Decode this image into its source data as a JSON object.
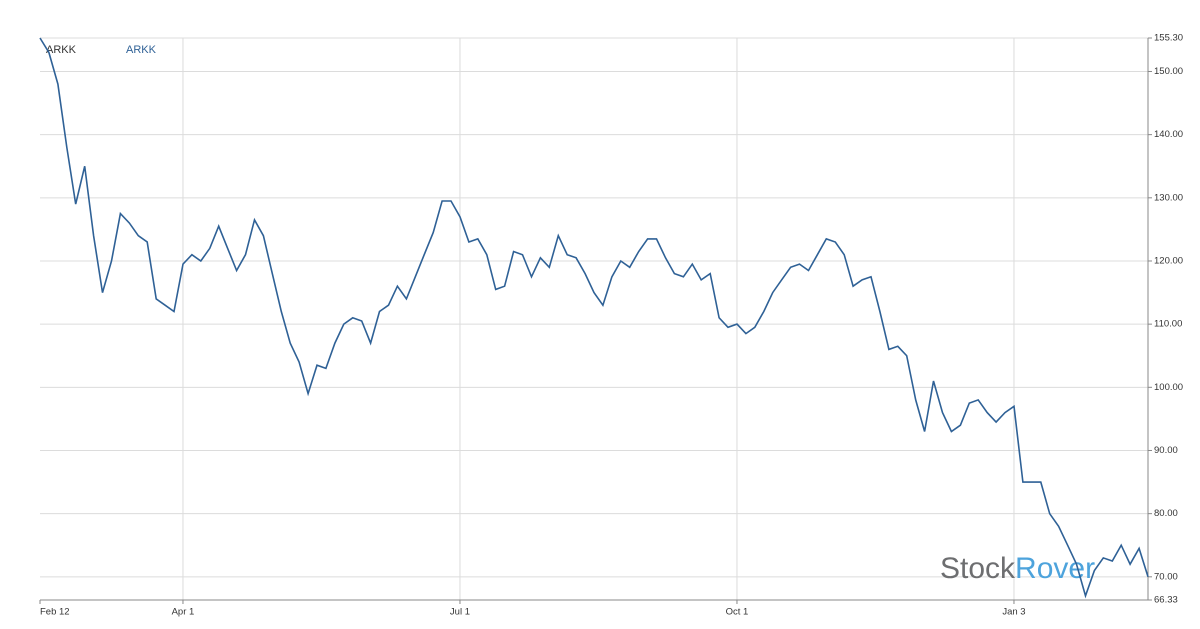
{
  "chart_data": {
    "type": "line",
    "title": "ARKK",
    "categories": [
      "Feb 12",
      null,
      null,
      null,
      null,
      null,
      null,
      null,
      null,
      null,
      null,
      null,
      null,
      null,
      null,
      null,
      "Apr 1",
      null,
      null,
      null,
      null,
      null,
      null,
      null,
      null,
      null,
      null,
      null,
      null,
      null,
      null,
      null,
      null,
      null,
      null,
      null,
      null,
      null,
      null,
      null,
      null,
      null,
      null,
      null,
      null,
      null,
      null,
      "Jul 1",
      null,
      null,
      null,
      null,
      null,
      null,
      null,
      null,
      null,
      null,
      null,
      null,
      null,
      null,
      null,
      null,
      null,
      null,
      null,
      null,
      null,
      null,
      null,
      null,
      null,
      null,
      null,
      null,
      null,
      null,
      "Oct 1",
      null,
      null,
      null,
      null,
      null,
      null,
      null,
      null,
      null,
      null,
      null,
      null,
      null,
      null,
      null,
      null,
      null,
      null,
      null,
      null,
      null,
      null,
      null,
      null,
      null,
      null,
      null,
      null,
      null,
      null,
      "Jan 3",
      null,
      null,
      null,
      null,
      null,
      null,
      null,
      null,
      null,
      null,
      null,
      null,
      null,
      null,
      null
    ],
    "series": [
      {
        "name": "ARKK",
        "color": "#2f6196",
        "values": [
          155.3,
          153,
          148,
          138,
          129,
          135,
          124,
          115,
          120,
          127.5,
          126,
          124,
          123,
          114,
          113,
          112,
          119.5,
          121,
          120,
          122,
          125.5,
          122,
          118.5,
          121,
          126.5,
          124,
          118,
          112,
          107,
          104,
          99,
          103.5,
          103,
          107,
          110,
          111,
          110.5,
          107,
          112,
          113,
          116,
          114,
          117.5,
          121,
          124.5,
          129.5,
          129.5,
          127,
          123,
          123.5,
          121,
          115.5,
          116,
          121.5,
          121,
          117.5,
          120.5,
          119,
          124,
          121,
          120.5,
          118,
          115,
          113,
          117.5,
          120,
          119,
          121.5,
          123.5,
          123.5,
          120.5,
          118,
          117.5,
          119.5,
          117,
          118,
          111,
          109.5,
          110,
          108.5,
          109.5,
          112,
          115,
          117,
          119,
          119.5,
          118.5,
          121,
          123.5,
          123,
          121,
          116,
          117,
          117.5,
          112,
          106,
          106.5,
          105,
          98,
          93,
          101,
          96,
          93,
          94,
          97.5,
          98,
          96,
          94.5,
          96,
          97,
          85,
          85,
          85,
          80,
          78,
          75,
          72,
          67,
          71,
          73,
          72.5,
          75,
          72,
          74.5,
          70
        ]
      }
    ],
    "ylim": [
      66.33,
      155.3
    ],
    "yticks": [
      {
        "value": 66.33,
        "label": "66.33"
      },
      {
        "value": 70,
        "label": "70.00"
      },
      {
        "value": 80,
        "label": "80.00"
      },
      {
        "value": 90,
        "label": "90.00"
      },
      {
        "value": 100,
        "label": "100.00"
      },
      {
        "value": 110,
        "label": "110.00"
      },
      {
        "value": 120,
        "label": "120.00"
      },
      {
        "value": 130,
        "label": "130.00"
      },
      {
        "value": 140,
        "label": "140.00"
      },
      {
        "value": 150,
        "label": "150.00"
      },
      {
        "value": 155.3,
        "label": "155.30"
      }
    ],
    "grid": true,
    "watermark": [
      "Stock",
      "Rover"
    ]
  }
}
